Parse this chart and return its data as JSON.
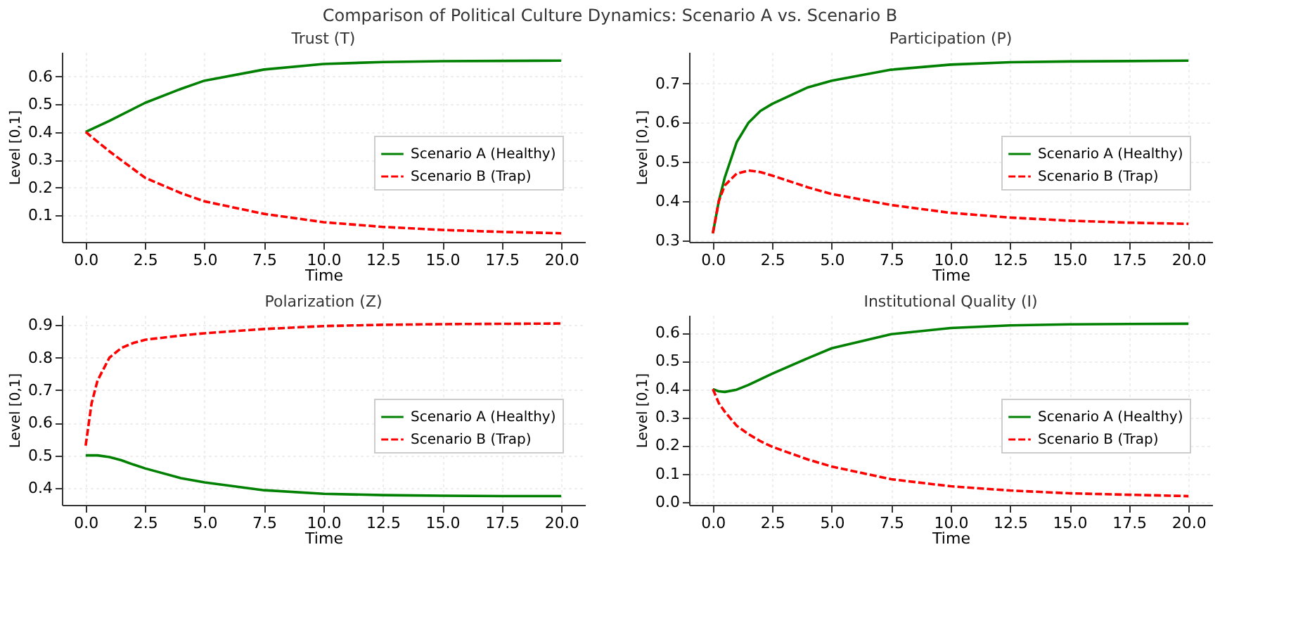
{
  "chart_data": [
    {
      "type": "line",
      "title": "Trust (T)",
      "annotations": [
        "Comparison of Political Culture Dynamics: Scenario A vs. Scenario B"
      ],
      "xlabel": "Time",
      "ylabel": "Level [0,1]",
      "xlim": [
        -1,
        21
      ],
      "ylim": [
        0.004,
        0.688
      ],
      "xticks": [
        {
          "value": 0,
          "label": "0.0"
        },
        2.5,
        {
          "value": 5,
          "label": "5.0"
        },
        7.5,
        {
          "value": 10,
          "label": "10.0"
        },
        12.5,
        {
          "value": 15,
          "label": "15.0"
        },
        17.5,
        {
          "value": 20,
          "label": "20.0"
        }
      ],
      "yticks": [
        0.1,
        0.2,
        0.3,
        0.4,
        0.5,
        0.6
      ],
      "grid": true,
      "legend": "right",
      "marker": "none",
      "x": [
        0,
        1,
        2.5,
        4,
        5,
        7.5,
        10,
        12.5,
        15,
        17.5,
        20
      ],
      "series": [
        {
          "name": "Scenario A (Healthy)",
          "color": "#008000",
          "line_style": "solid",
          "values": [
            0.4,
            0.44,
            0.505,
            0.555,
            0.585,
            0.625,
            0.645,
            0.652,
            0.655,
            0.656,
            0.657
          ]
        },
        {
          "name": "Scenario B (Trap)",
          "color": "#ff0000",
          "line_style": "dashed",
          "values": [
            0.4,
            0.33,
            0.235,
            0.18,
            0.15,
            0.105,
            0.075,
            0.058,
            0.047,
            0.04,
            0.035
          ]
        }
      ]
    },
    {
      "type": "line",
      "title": "Participation (P)",
      "xlabel": "Time",
      "ylabel": "Level [0,1]",
      "xlim": [
        -1,
        21
      ],
      "ylim": [
        0.296,
        0.78
      ],
      "xticks": [
        {
          "value": 0,
          "label": "0.0"
        },
        2.5,
        {
          "value": 5,
          "label": "5.0"
        },
        7.5,
        {
          "value": 10,
          "label": "10.0"
        },
        12.5,
        {
          "value": 15,
          "label": "15.0"
        },
        17.5,
        {
          "value": 20,
          "label": "20.0"
        }
      ],
      "yticks": [
        0.3,
        0.4,
        0.5,
        0.6,
        0.7
      ],
      "grid": true,
      "legend": "right",
      "marker": "none",
      "x": [
        0,
        0.25,
        0.5,
        1,
        1.5,
        2,
        2.5,
        4,
        5,
        7.5,
        10,
        12.5,
        15,
        17.5,
        20
      ],
      "series": [
        {
          "name": "Scenario A (Healthy)",
          "color": "#008000",
          "line_style": "solid",
          "values": [
            0.318,
            0.4,
            0.46,
            0.55,
            0.6,
            0.63,
            0.648,
            0.69,
            0.707,
            0.735,
            0.748,
            0.754,
            0.756,
            0.757,
            0.758
          ]
        },
        {
          "name": "Scenario B (Trap)",
          "color": "#ff0000",
          "line_style": "dashed",
          "values": [
            0.318,
            0.4,
            0.44,
            0.47,
            0.478,
            0.474,
            0.465,
            0.435,
            0.418,
            0.39,
            0.37,
            0.358,
            0.35,
            0.345,
            0.342
          ]
        }
      ]
    },
    {
      "type": "line",
      "title": "Polarization (Z)",
      "xlabel": "Time",
      "ylabel": "Level [0,1]",
      "xlim": [
        -1,
        21
      ],
      "ylim": [
        0.348,
        0.931
      ],
      "xticks": [
        {
          "value": 0,
          "label": "0.0"
        },
        2.5,
        {
          "value": 5,
          "label": "5.0"
        },
        7.5,
        {
          "value": 10,
          "label": "10.0"
        },
        12.5,
        {
          "value": 15,
          "label": "15.0"
        },
        17.5,
        {
          "value": 20,
          "label": "20.0"
        }
      ],
      "yticks": [
        0.4,
        0.5,
        0.6,
        0.7,
        0.8,
        0.9
      ],
      "grid": true,
      "legend": "right",
      "marker": "none",
      "x": [
        0,
        0.25,
        0.5,
        1,
        1.5,
        2,
        2.5,
        4,
        5,
        7.5,
        10,
        12.5,
        15,
        17.5,
        20
      ],
      "series": [
        {
          "name": "Scenario A (Healthy)",
          "color": "#008000",
          "line_style": "solid",
          "values": [
            0.5,
            0.5,
            0.5,
            0.495,
            0.485,
            0.472,
            0.46,
            0.43,
            0.417,
            0.393,
            0.382,
            0.378,
            0.376,
            0.375,
            0.375
          ]
        },
        {
          "name": "Scenario B (Trap)",
          "color": "#ff0000",
          "line_style": "dashed",
          "values": [
            0.53,
            0.66,
            0.73,
            0.8,
            0.83,
            0.845,
            0.855,
            0.868,
            0.875,
            0.888,
            0.897,
            0.901,
            0.903,
            0.904,
            0.905
          ]
        }
      ]
    },
    {
      "type": "line",
      "title": "Institutional Quality (I)",
      "xlabel": "Time",
      "ylabel": "Level [0,1]",
      "xlim": [
        -1,
        21
      ],
      "ylim": [
        -0.011,
        0.663
      ],
      "xticks": [
        {
          "value": 0,
          "label": "0.0"
        },
        2.5,
        {
          "value": 5,
          "label": "5.0"
        },
        7.5,
        {
          "value": 10,
          "label": "10.0"
        },
        12.5,
        {
          "value": 15,
          "label": "15.0"
        },
        17.5,
        {
          "value": 20,
          "label": "20.0"
        }
      ],
      "yticks": [
        {
          "value": 0,
          "label": "0.0"
        },
        0.1,
        0.2,
        0.3,
        0.4,
        0.5,
        0.6
      ],
      "grid": true,
      "legend": "right",
      "marker": "none",
      "x": [
        0,
        0.25,
        0.5,
        1,
        1.5,
        2,
        2.5,
        4,
        5,
        7.5,
        10,
        12.5,
        15,
        17.5,
        20
      ],
      "series": [
        {
          "name": "Scenario A (Healthy)",
          "color": "#008000",
          "line_style": "solid",
          "values": [
            0.4,
            0.392,
            0.39,
            0.398,
            0.415,
            0.435,
            0.455,
            0.51,
            0.545,
            0.595,
            0.617,
            0.626,
            0.63,
            0.631,
            0.632
          ]
        },
        {
          "name": "Scenario B (Trap)",
          "color": "#ff0000",
          "line_style": "dashed",
          "values": [
            0.4,
            0.35,
            0.32,
            0.27,
            0.24,
            0.215,
            0.195,
            0.15,
            0.125,
            0.08,
            0.055,
            0.04,
            0.03,
            0.025,
            0.02
          ]
        }
      ]
    }
  ]
}
